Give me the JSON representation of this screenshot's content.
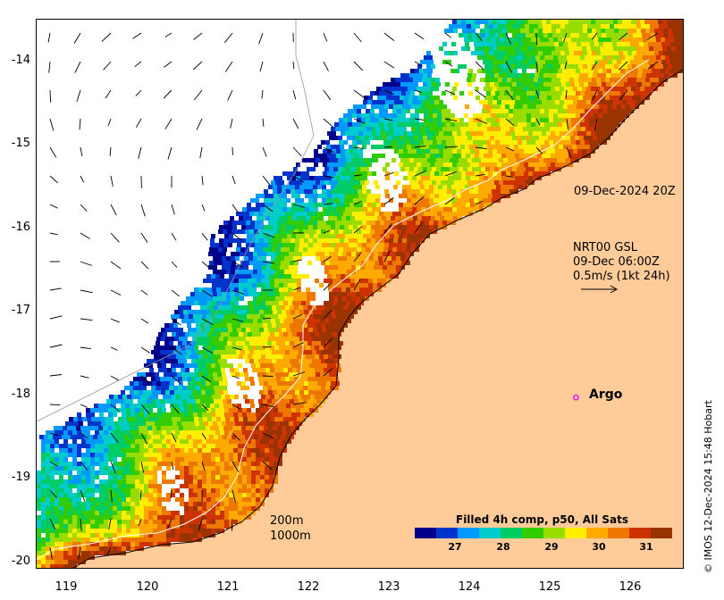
{
  "map": {
    "lon_range": [
      118.6,
      126.65
    ],
    "lat_range": [
      -20.05,
      -13.5
    ],
    "x_ticks": [
      "119",
      "120",
      "121",
      "122",
      "123",
      "124",
      "125",
      "126"
    ],
    "y_ticks": [
      "-14",
      "-15",
      "-16",
      "-17",
      "-18",
      "-19",
      "-20"
    ],
    "land_color": "#ffcc99",
    "coast_color": "#000000",
    "isobath_color": "#999999",
    "current_vector_color": "#000000"
  },
  "annotations": {
    "pass_time": "09-Dec-2024 20Z",
    "currents_line1": "NRT00 GSL",
    "currents_line2": "09-Dec 06:00Z",
    "currents_line3": "0.5m/s (1kt 24h)",
    "argo_label": "Argo",
    "isobath_200": "200m",
    "isobath_1000": "1000m"
  },
  "colorbar": {
    "title": "Filled 4h comp, p50, All Sats",
    "range": [
      26,
      31.8
    ],
    "ticks": [
      "27",
      "28",
      "29",
      "30",
      "31"
    ],
    "colors": [
      "#00008b",
      "#0033cc",
      "#0099ff",
      "#00cccc",
      "#00cc66",
      "#33cc00",
      "#99dd00",
      "#ffee00",
      "#ffaa00",
      "#ee7700",
      "#cc3300",
      "#993300"
    ]
  },
  "credit": "© IMOS 12-Dec-2024 15:48 Hobart",
  "argo_float": {
    "lon": 125.3,
    "lat": -18.0,
    "color": "#ff00ff"
  }
}
